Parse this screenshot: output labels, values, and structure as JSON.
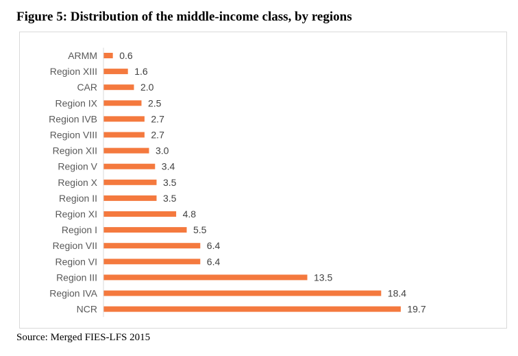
{
  "figure": {
    "title": "Figure 5: Distribution of the middle-income class, by regions",
    "source": "Source: Merged FIES-LFS 2015"
  },
  "chart_data": {
    "type": "bar",
    "orientation": "horizontal",
    "title": "",
    "xlabel": "",
    "ylabel": "",
    "xlim": [
      0,
      20
    ],
    "bar_color": "#f4793e",
    "categories": [
      "ARMM",
      "Region XIII",
      "CAR",
      "Region IX",
      "Region IVB",
      "Region VIII",
      "Region XII",
      "Region V",
      "Region X",
      "Region II",
      "Region XI",
      "Region I",
      "Region VII",
      "Region VI",
      "Region III",
      "Region IVA",
      "NCR"
    ],
    "values": [
      0.6,
      1.6,
      2.0,
      2.5,
      2.7,
      2.7,
      3.0,
      3.4,
      3.5,
      3.5,
      4.8,
      5.5,
      6.4,
      6.4,
      13.5,
      18.4,
      19.7
    ],
    "value_labels": [
      "0.6",
      "1.6",
      "2.0",
      "2.5",
      "2.7",
      "2.7",
      "3.0",
      "3.4",
      "3.5",
      "3.5",
      "4.8",
      "5.5",
      "6.4",
      "6.4",
      "13.5",
      "18.4",
      "19.7"
    ],
    "grid": false,
    "legend": "none"
  }
}
